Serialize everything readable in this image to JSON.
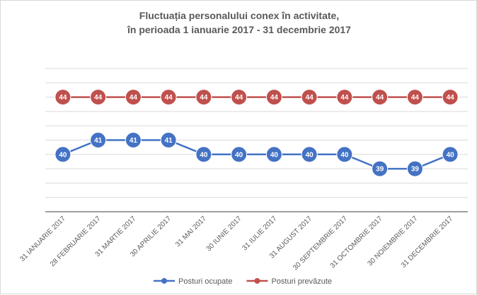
{
  "chart_data": {
    "type": "line",
    "title": [
      "Fluctuația personalului conex în activitate,",
      "în perioada 1 ianuarie 2017 - 31 decembrie 2017"
    ],
    "categories": [
      "31 IANUARIE 2017",
      "28 FEBRUARIE 2017",
      "31 MARTIE 2017",
      "30 APRILIE 2017",
      "31 MAI 2017",
      "30 IUNIE 2017",
      "31 IULIE 2017",
      "31 AUGUST 2017",
      "30 SEPTEMBRIE 2017",
      "31 OCTOMBRIE 2017",
      "30 NOIEMBRIE 2017",
      "31 DECEMBRIE 2017"
    ],
    "series": [
      {
        "name": "Posturi ocupate",
        "color": "#4472c4",
        "values": [
          40,
          41,
          41,
          41,
          40,
          40,
          40,
          40,
          40,
          39,
          39,
          40
        ]
      },
      {
        "name": "Posturi prevăzute",
        "color": "#c0504d",
        "values": [
          44,
          44,
          44,
          44,
          44,
          44,
          44,
          44,
          44,
          44,
          44,
          44
        ]
      }
    ],
    "ylim": [
      36,
      46
    ],
    "grid": true,
    "legend": "bottom",
    "data_labels": true,
    "y_tick_labels": false
  }
}
